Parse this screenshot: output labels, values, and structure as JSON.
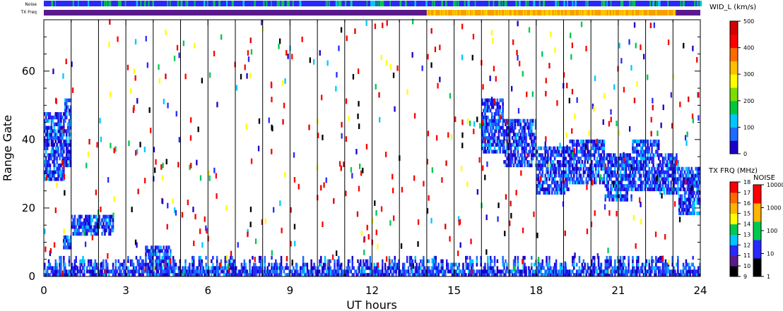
{
  "chart_data": {
    "type": "heatmap",
    "xlabel": "UT hours",
    "ylabel": "Range Gate",
    "xlim": [
      0,
      24
    ],
    "ylim": [
      0,
      75
    ],
    "x_ticks": [
      "0",
      "3",
      "6",
      "9",
      "12",
      "15",
      "18",
      "21",
      "24"
    ],
    "y_ticks": [
      "0",
      "20",
      "40",
      "60"
    ],
    "vertical_lines_hours": [
      1,
      2,
      3,
      4,
      5,
      6,
      7,
      8,
      9,
      10,
      11,
      12,
      13,
      14,
      15,
      16,
      17,
      18,
      19,
      20,
      21,
      22,
      23
    ],
    "status_bars": {
      "noise_label": "Noise",
      "txfreq_label": "TX Freq",
      "txfreq_segments": [
        {
          "from": 0,
          "to": 14,
          "color": "#5a1a8c"
        },
        {
          "from": 14,
          "to": 23.1,
          "color": "#f5a000"
        },
        {
          "from": 23.1,
          "to": 24,
          "color": "#5a1a8c"
        }
      ]
    },
    "scatter_bands": [
      {
        "from": 0,
        "to": 0.75,
        "lo": 28,
        "hi": 48
      },
      {
        "from": 0.75,
        "to": 1.0,
        "lo": 32,
        "hi": 52
      },
      {
        "from": 0.7,
        "to": 1.0,
        "lo": 8,
        "hi": 12
      },
      {
        "from": 1.0,
        "to": 2.5,
        "lo": 12,
        "hi": 18
      },
      {
        "from": 3.7,
        "to": 4.6,
        "lo": 2,
        "hi": 9
      },
      {
        "from": 16.0,
        "to": 16.8,
        "lo": 36,
        "hi": 52
      },
      {
        "from": 16.8,
        "to": 18.0,
        "lo": 32,
        "hi": 46
      },
      {
        "from": 18.0,
        "to": 19.2,
        "lo": 24,
        "hi": 38
      },
      {
        "from": 19.2,
        "to": 20.5,
        "lo": 27,
        "hi": 40
      },
      {
        "from": 20.5,
        "to": 21.5,
        "lo": 22,
        "hi": 36
      },
      {
        "from": 21.5,
        "to": 22.5,
        "lo": 25,
        "hi": 40
      },
      {
        "from": 22.5,
        "to": 23.2,
        "lo": 24,
        "hi": 36
      },
      {
        "from": 23.2,
        "to": 24.0,
        "lo": 18,
        "hi": 32
      },
      {
        "from": 0,
        "to": 24,
        "lo": 0,
        "hi": 6
      }
    ],
    "colorbars": [
      {
        "title": "WID_L (km/s)",
        "ticks": [
          "0",
          "100",
          "200",
          "300",
          "400",
          "500"
        ],
        "colors": [
          "#1a00c8",
          "#1e6bff",
          "#00c8ff",
          "#00c83c",
          "#7ddc00",
          "#ffff00",
          "#ffc000",
          "#ff6a00",
          "#ff0000",
          "#d40000"
        ]
      },
      {
        "title": "TX FRQ (MHz)",
        "ticks": [
          "9",
          "10",
          "11",
          "12",
          "13",
          "14",
          "15",
          "16",
          "17",
          "18"
        ],
        "colors": [
          "#000000",
          "#5a1a8c",
          "#2828ff",
          "#00c8ff",
          "#00c850",
          "#ffff00",
          "#ffb400",
          "#ff6a00",
          "#ff0000"
        ]
      },
      {
        "title": "NOISE",
        "ticks": [
          "1",
          "10",
          "100",
          "1000",
          "10000"
        ],
        "colors": [
          "#000000",
          "#2828ff",
          "#00c850",
          "#ffb400",
          "#ff0000"
        ]
      }
    ],
    "grid": false
  }
}
